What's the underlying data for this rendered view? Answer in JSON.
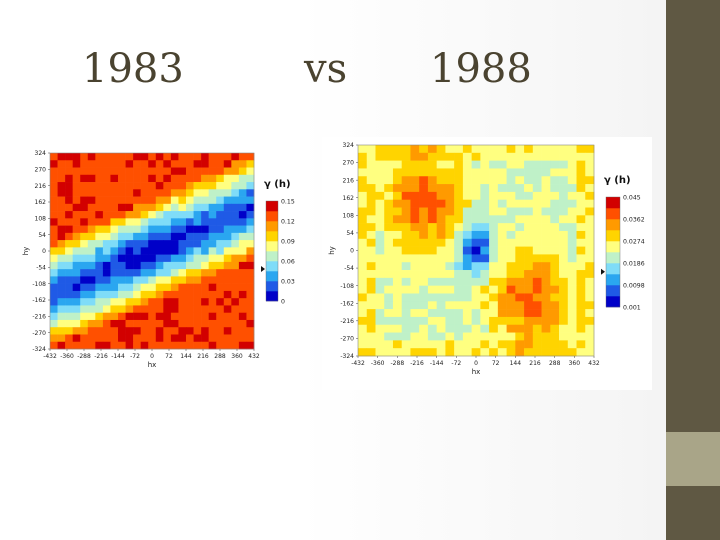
{
  "slide": {
    "title_left": "1983",
    "title_mid": "vs",
    "title_right": "1988",
    "colors": {
      "sidebar": "#5f5843",
      "sidebar_accent": "#a9a588",
      "title_text": "#4a4330"
    }
  },
  "chart_data": [
    {
      "type": "heatmap",
      "title": "",
      "xlabel": "hx",
      "ylabel": "hy",
      "x_ticks": [
        -432,
        -360,
        -288,
        -216,
        -144,
        -72,
        0,
        72,
        144,
        216,
        288,
        360,
        432
      ],
      "y_ticks": [
        324,
        270,
        216,
        162,
        108,
        54,
        0,
        -54,
        -108,
        -162,
        -216,
        -270,
        -324
      ],
      "xlim": [
        -432,
        432
      ],
      "ylim": [
        -324,
        324
      ],
      "legend_title": "γ (h)",
      "legend_labels": [
        "0.15",
        "0.12",
        "0.09",
        "0.06",
        "0.03",
        "0"
      ],
      "legend_values": [
        0.15,
        0.12,
        0.09,
        0.06,
        0.03,
        0
      ],
      "vmin": 0,
      "vmax": 0.15,
      "pattern": "low-variance band along anti-diagonal",
      "colors": [
        "#0000c8",
        "#1f5ae6",
        "#2aa6f0",
        "#7fdcf8",
        "#bff1c8",
        "#ffff80",
        "#ffd400",
        "#ff9a00",
        "#ff5000",
        "#d20000"
      ]
    },
    {
      "type": "heatmap",
      "title": "",
      "xlabel": "hx",
      "ylabel": "hy",
      "x_ticks": [
        -432,
        -360,
        -288,
        -216,
        -144,
        -72,
        0,
        72,
        144,
        216,
        288,
        360,
        432
      ],
      "y_ticks": [
        324,
        270,
        216,
        162,
        108,
        54,
        0,
        -54,
        -108,
        -162,
        -216,
        -270,
        -324
      ],
      "xlim": [
        -432,
        432
      ],
      "ylim": [
        -324,
        324
      ],
      "legend_title": "γ (h)",
      "legend_labels": [
        "0.045",
        "0.0362",
        "0.0274",
        "0.0186",
        "0.0098",
        "0.001"
      ],
      "legend_values": [
        0.045,
        0.0362,
        0.0274,
        0.0186,
        0.0098,
        0.001
      ],
      "vmin": 0.001,
      "vmax": 0.045,
      "pattern": "low-variance core at center with high bands upper-left and lower-right",
      "colors": [
        "#0000c8",
        "#1f5ae6",
        "#2aa6f0",
        "#7fdcf8",
        "#bff1c8",
        "#ffff80",
        "#ffd400",
        "#ff9a00",
        "#ff5000",
        "#d20000"
      ]
    }
  ]
}
